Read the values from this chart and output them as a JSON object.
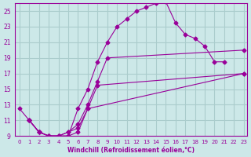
{
  "xlabel": "Windchill (Refroidissement éolien,°C)",
  "bg_color": "#cce8e8",
  "grid_color": "#aacccc",
  "line_color": "#990099",
  "xlim": [
    -0.5,
    23.3
  ],
  "ylim": [
    9,
    26
  ],
  "yticks": [
    9,
    11,
    13,
    15,
    17,
    19,
    21,
    23,
    25
  ],
  "xticks": [
    0,
    1,
    2,
    3,
    4,
    5,
    6,
    7,
    8,
    9,
    10,
    11,
    12,
    13,
    14,
    15,
    16,
    17,
    18,
    19,
    20,
    21,
    22,
    23
  ],
  "line1_x": [
    0,
    1,
    2,
    3,
    4,
    5,
    6,
    7,
    8,
    9,
    10,
    11,
    12,
    13,
    14,
    15,
    16,
    17,
    18,
    19,
    20,
    21
  ],
  "line1_y": [
    12.5,
    11.0,
    9.5,
    9.0,
    9.0,
    9.0,
    12.5,
    15.0,
    18.5,
    21.0,
    23.0,
    24.0,
    25.0,
    25.5,
    26.0,
    26.2,
    23.5,
    22.0,
    21.5,
    20.5,
    18.5,
    18.5
  ],
  "line2_x": [
    1,
    2,
    3,
    4,
    5,
    6,
    7,
    23
  ],
  "line2_y": [
    11.0,
    9.5,
    9.0,
    9.0,
    9.0,
    9.5,
    12.5,
    17.0
  ],
  "line3_x": [
    1,
    2,
    3,
    4,
    5,
    6,
    7,
    8,
    23
  ],
  "line3_y": [
    11.0,
    9.5,
    9.0,
    9.0,
    9.5,
    10.0,
    12.5,
    15.5,
    17.0
  ],
  "line4_x": [
    1,
    2,
    3,
    4,
    5,
    6,
    7,
    8,
    9,
    23
  ],
  "line4_y": [
    11.0,
    9.5,
    9.0,
    9.0,
    9.5,
    10.5,
    13.0,
    16.0,
    19.0,
    20.0
  ]
}
